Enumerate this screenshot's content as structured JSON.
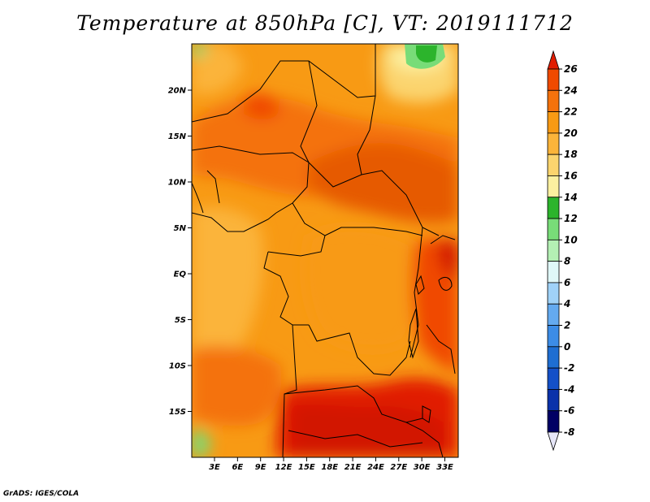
{
  "title": "Temperature at 850hPa [C], VT: 2019111712",
  "credit": "GrADS: IGES/COLA",
  "map": {
    "lat_labels": [
      "20N",
      "15N",
      "10N",
      "5N",
      "EQ",
      "5S",
      "10S",
      "15S"
    ],
    "lat_values": [
      20,
      15,
      10,
      5,
      0,
      -5,
      -10,
      -15
    ],
    "lon_labels": [
      "3E",
      "6E",
      "9E",
      "12E",
      "15E",
      "18E",
      "21E",
      "24E",
      "27E",
      "30E",
      "33E"
    ],
    "lon_values": [
      3,
      6,
      9,
      12,
      15,
      18,
      21,
      24,
      27,
      30,
      33
    ]
  },
  "colorbar": {
    "labels": [
      "26",
      "24",
      "22",
      "20",
      "18",
      "16",
      "14",
      "12",
      "10",
      "8",
      "6",
      "4",
      "2",
      "0",
      "-2",
      "-4",
      "-6",
      "-8"
    ],
    "colors": [
      "#e11c00",
      "#f04a00",
      "#f4720c",
      "#f89a14",
      "#fbb43a",
      "#fbd46e",
      "#fbf0a0",
      "#2cb42c",
      "#78dc78",
      "#b4f0b4",
      "#e0f8f8",
      "#a0d2f8",
      "#64aaf0",
      "#3c8ce6",
      "#1e6ed2",
      "#1450c8",
      "#0a32aa",
      "#000064"
    ],
    "top_arrow_color": "#e11c00",
    "bottom_arrow_color": "#e6e6f8"
  }
}
